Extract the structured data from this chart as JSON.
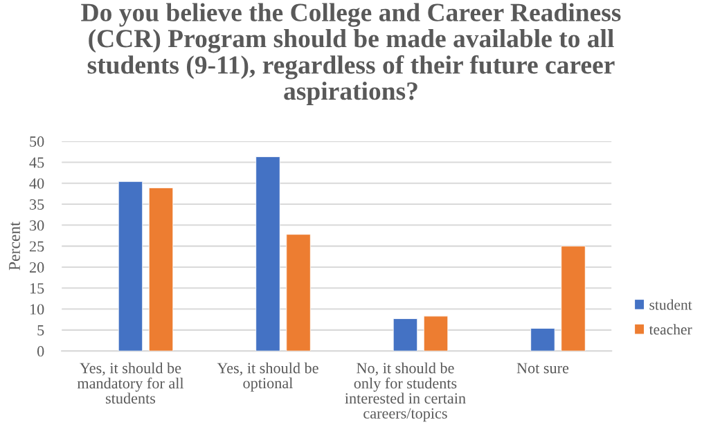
{
  "chart_data": {
    "type": "bar",
    "title": "Do you believe the College and Career Readiness\n(CCR) Program should be made available to all\nstudents (9-11), regardless of their future career\naspirations?",
    "ylabel": "Percent",
    "categories": [
      "Yes, it should be\nmandatory for all\nstudents",
      "Yes, it should be\noptional",
      "No, it should be\nonly for students\ninterested in certain\ncareers/topics",
      "Not sure"
    ],
    "series": [
      {
        "name": "student",
        "color": "#4472c4",
        "values": [
          40.4,
          46.3,
          7.7,
          5.4
        ]
      },
      {
        "name": "teacher",
        "color": "#ed7d31",
        "values": [
          38.9,
          27.8,
          8.3,
          25.0
        ]
      }
    ],
    "ylim": [
      0,
      50
    ],
    "yticks": [
      0,
      5,
      10,
      15,
      20,
      25,
      30,
      35,
      40,
      45,
      50
    ],
    "grid": "y",
    "legend": "right"
  }
}
